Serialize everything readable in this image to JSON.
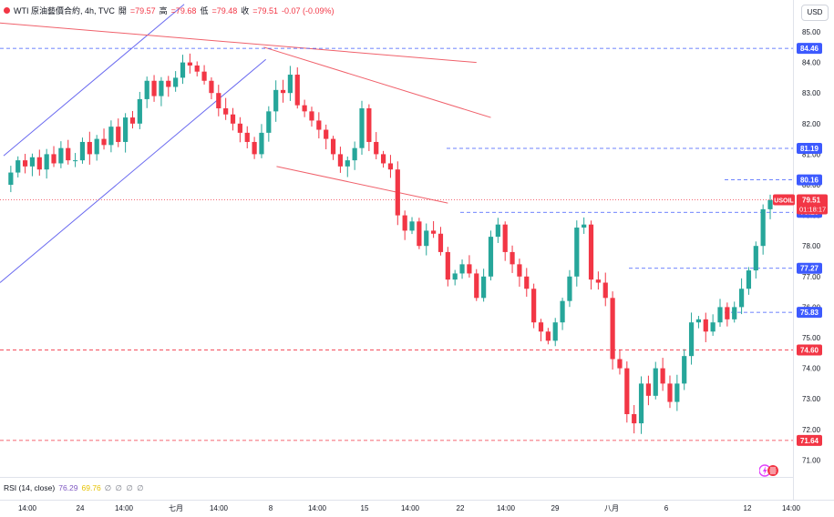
{
  "legend": {
    "symbol": "WTI 原油藝價合約, 4h, TVC",
    "open_label": "開",
    "open": "=79.57",
    "high_label": "高",
    "high": "=79.68",
    "low_label": "低",
    "low": "=79.48",
    "close_label": "收",
    "close": "=79.51",
    "change": "-0.07 (-0.09%)"
  },
  "currency": "USD",
  "rsi": {
    "label": "RSI (14, close)",
    "value1": "76.29",
    "value2": "69.76",
    "na": "∅ ∅ ∅ ∅"
  },
  "colors": {
    "up": "#26a69a",
    "down": "#f23645",
    "blue_line": "#6b6bf0",
    "red_line": "#f0616b",
    "blue_tag": "#3d5afe",
    "red_tag": "#f23645",
    "price_tag": "#f23645"
  },
  "chart_data": {
    "type": "candlestick",
    "symbol": "USOIL",
    "timeframe": "4h",
    "y_ticks": [
      "85.00",
      "84.00",
      "83.00",
      "82.00",
      "81.00",
      "80.00",
      "79.00",
      "78.00",
      "77.00",
      "76.00",
      "75.00",
      "74.00",
      "73.00",
      "72.00",
      "71.00"
    ],
    "ylim": [
      70.6,
      85.4
    ],
    "x_ticks": [
      "14:00",
      "24",
      "14:00",
      "七月",
      "14:00",
      "8",
      "14:00",
      "15",
      "14:00",
      "22",
      "14:00",
      "29",
      "八月",
      "6",
      "12",
      "14:00"
    ],
    "current_price": {
      "value": "79.51",
      "countdown": "01:18:17",
      "symbol": "USOIL"
    },
    "horizontal_levels": [
      {
        "value": 84.46,
        "label": "84.46",
        "color": "blue"
      },
      {
        "value": 81.19,
        "label": "81.19",
        "color": "blue"
      },
      {
        "value": 80.16,
        "label": "80.16",
        "color": "blue"
      },
      {
        "value": 79.1,
        "label": "79.10",
        "color": "blue"
      },
      {
        "value": 77.27,
        "label": "77.27",
        "color": "blue"
      },
      {
        "value": 75.83,
        "label": "75.83",
        "color": "blue"
      },
      {
        "value": 74.6,
        "label": "74.60",
        "color": "red"
      },
      {
        "value": 71.64,
        "label": "71.64",
        "color": "red"
      }
    ],
    "anchors": [
      [
        0,
        80.0
      ],
      [
        1,
        80.4
      ],
      [
        2,
        80.8
      ],
      [
        3,
        80.6
      ],
      [
        4,
        80.9
      ],
      [
        5,
        80.5
      ],
      [
        6,
        81.0
      ],
      [
        7,
        80.7
      ],
      [
        8,
        81.2
      ],
      [
        9,
        80.8
      ],
      [
        10,
        80.8
      ],
      [
        11,
        81.4
      ],
      [
        12,
        81.0
      ],
      [
        13,
        81.5
      ],
      [
        14,
        81.3
      ],
      [
        15,
        81.9
      ],
      [
        16,
        81.4
      ],
      [
        17,
        82.2
      ],
      [
        18,
        82.0
      ],
      [
        19,
        82.8
      ],
      [
        20,
        83.4
      ],
      [
        21,
        82.9
      ],
      [
        22,
        83.4
      ],
      [
        23,
        83.2
      ],
      [
        24,
        83.5
      ],
      [
        25,
        84.0
      ],
      [
        26,
        83.9
      ],
      [
        27,
        83.7
      ],
      [
        28,
        83.4
      ],
      [
        29,
        83.0
      ],
      [
        30,
        82.5
      ],
      [
        31,
        82.3
      ],
      [
        32,
        82.0
      ],
      [
        33,
        81.7
      ],
      [
        34,
        81.4
      ],
      [
        35,
        81.0
      ],
      [
        36,
        81.7
      ],
      [
        37,
        82.4
      ],
      [
        38,
        83.1
      ],
      [
        39,
        83.0
      ],
      [
        40,
        83.6
      ],
      [
        41,
        82.6
      ],
      [
        42,
        82.4
      ],
      [
        43,
        82.1
      ],
      [
        44,
        81.8
      ],
      [
        45,
        81.5
      ],
      [
        46,
        81.0
      ],
      [
        47,
        80.6
      ],
      [
        48,
        80.8
      ],
      [
        49,
        81.2
      ],
      [
        50,
        82.5
      ],
      [
        51,
        81.4
      ],
      [
        52,
        81.0
      ],
      [
        53,
        80.7
      ],
      [
        54,
        80.5
      ],
      [
        55,
        79.0
      ],
      [
        56,
        78.5
      ],
      [
        57,
        78.8
      ],
      [
        58,
        78.0
      ],
      [
        59,
        78.5
      ],
      [
        60,
        78.4
      ],
      [
        61,
        77.8
      ],
      [
        62,
        76.9
      ],
      [
        63,
        77.1
      ],
      [
        64,
        77.4
      ],
      [
        65,
        77.1
      ],
      [
        66,
        76.3
      ],
      [
        67,
        77.0
      ],
      [
        68,
        78.3
      ],
      [
        69,
        78.7
      ],
      [
        70,
        77.8
      ],
      [
        71,
        77.4
      ],
      [
        72,
        77.0
      ],
      [
        73,
        76.6
      ],
      [
        74,
        75.5
      ],
      [
        75,
        75.2
      ],
      [
        76,
        74.9
      ],
      [
        77,
        75.5
      ],
      [
        78,
        76.2
      ],
      [
        79,
        77.0
      ],
      [
        80,
        78.6
      ],
      [
        81,
        78.7
      ],
      [
        82,
        76.9
      ],
      [
        83,
        76.8
      ],
      [
        84,
        76.3
      ],
      [
        85,
        74.3
      ],
      [
        86,
        74.0
      ],
      [
        87,
        72.5
      ],
      [
        88,
        72.2
      ],
      [
        89,
        73.5
      ],
      [
        90,
        73.1
      ],
      [
        91,
        74.0
      ],
      [
        92,
        73.5
      ],
      [
        93,
        72.9
      ],
      [
        94,
        73.5
      ],
      [
        95,
        74.4
      ],
      [
        96,
        75.5
      ],
      [
        97,
        75.6
      ],
      [
        98,
        75.2
      ],
      [
        99,
        75.5
      ],
      [
        100,
        76.0
      ],
      [
        101,
        75.6
      ],
      [
        102,
        76.0
      ],
      [
        103,
        76.6
      ],
      [
        104,
        77.2
      ],
      [
        105,
        78.0
      ],
      [
        106,
        79.2
      ],
      [
        107,
        79.5
      ]
    ]
  }
}
